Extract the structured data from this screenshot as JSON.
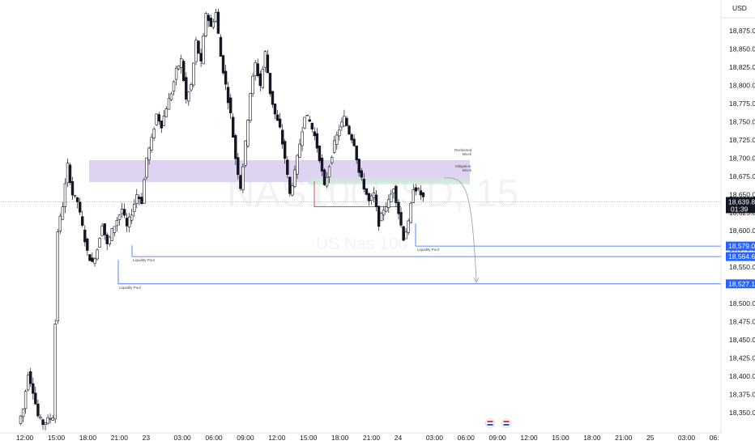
{
  "chart_data": {
    "type": "candlestick",
    "symbol_watermark": "NAS100USD, 15",
    "description_watermark": "US Nas 100",
    "currency": "USD",
    "y_ticks": [
      18875,
      18850,
      18825,
      18800,
      18775,
      18750,
      18725,
      18700,
      18675,
      18650,
      18625,
      18600,
      18575,
      18550,
      18525,
      18500,
      18475,
      18450,
      18425,
      18400,
      18375,
      18350
    ],
    "y_tick_labels": [
      "18,875.0",
      "18,850.0",
      "18,825.0",
      "18,800.0",
      "18,775.0",
      "18,750.0",
      "18,725.0",
      "18,700.0",
      "18,675.0",
      "18,650.0",
      "18,625.0",
      "18,600.0",
      "18,575.0",
      "18,550.0",
      "18,525.0",
      "18,500.0",
      "18,475.0",
      "18,450.0",
      "18,425.0",
      "18,400.0",
      "18,375.0",
      "18,350.0"
    ],
    "ylim": [
      18335,
      18902
    ],
    "x_tick_labels": [
      "12:00",
      "15:00",
      "18:00",
      "21:00",
      "23",
      "03:00",
      "06:00",
      "09:00",
      "12:00",
      "15:00",
      "18:00",
      "21:00",
      "24",
      "03:00",
      "06:00",
      "09:00",
      "12:00",
      "15:00",
      "18:00",
      "21:00",
      "25",
      "03:00",
      "06:"
    ],
    "current_price": "18,639.8",
    "countdown": "01:39",
    "level_tags": [
      {
        "price": 18579.0,
        "label": "18,579.0"
      },
      {
        "price": 18564.6,
        "label": "18,564.6"
      },
      {
        "price": 18527.1,
        "label": "18,527.1"
      }
    ],
    "zones": [
      {
        "price_top": 18697,
        "price_bottom": 18667,
        "color": "#d8cdf0"
      },
      {
        "price_top": 18672,
        "price_bottom": 18664,
        "color": "#cfe9d6"
      }
    ],
    "annotations": {
      "reclaimed_1": "Reclaimed",
      "reclaimed_2": "Block",
      "mitigation_1": "Mitigation",
      "mitigation_2": "Block",
      "liq_pool_1": "Liquidity Pool",
      "liq_pool_2": "Liquidity Pool",
      "liq_pool_3": "Liquidity Pool"
    },
    "colors": {
      "up": "#26a69a",
      "down": "#131722",
      "level": "#2962ff",
      "red_line": "#b22833"
    },
    "price_path": [
      18335,
      18355,
      18405,
      18380,
      18345,
      18335,
      18340,
      18345,
      18600,
      18635,
      18690,
      18650,
      18640,
      18605,
      18570,
      18555,
      18575,
      18610,
      18580,
      18600,
      18615,
      18630,
      18605,
      18625,
      18650,
      18640,
      18700,
      18725,
      18760,
      18745,
      18770,
      18790,
      18820,
      18835,
      18780,
      18800,
      18860,
      18830,
      18900,
      18880,
      18900,
      18840,
      18800,
      18760,
      18700,
      18660,
      18720,
      18790,
      18830,
      18800,
      18845,
      18790,
      18760,
      18740,
      18700,
      18650,
      18680,
      18720,
      18760,
      18750,
      18730,
      18700,
      18660,
      18690,
      18720,
      18740,
      18755,
      18735,
      18720,
      18680,
      18660,
      18640,
      18650,
      18610,
      18630,
      18640,
      18660,
      18625,
      18590,
      18610,
      18660,
      18655,
      18645
    ]
  }
}
